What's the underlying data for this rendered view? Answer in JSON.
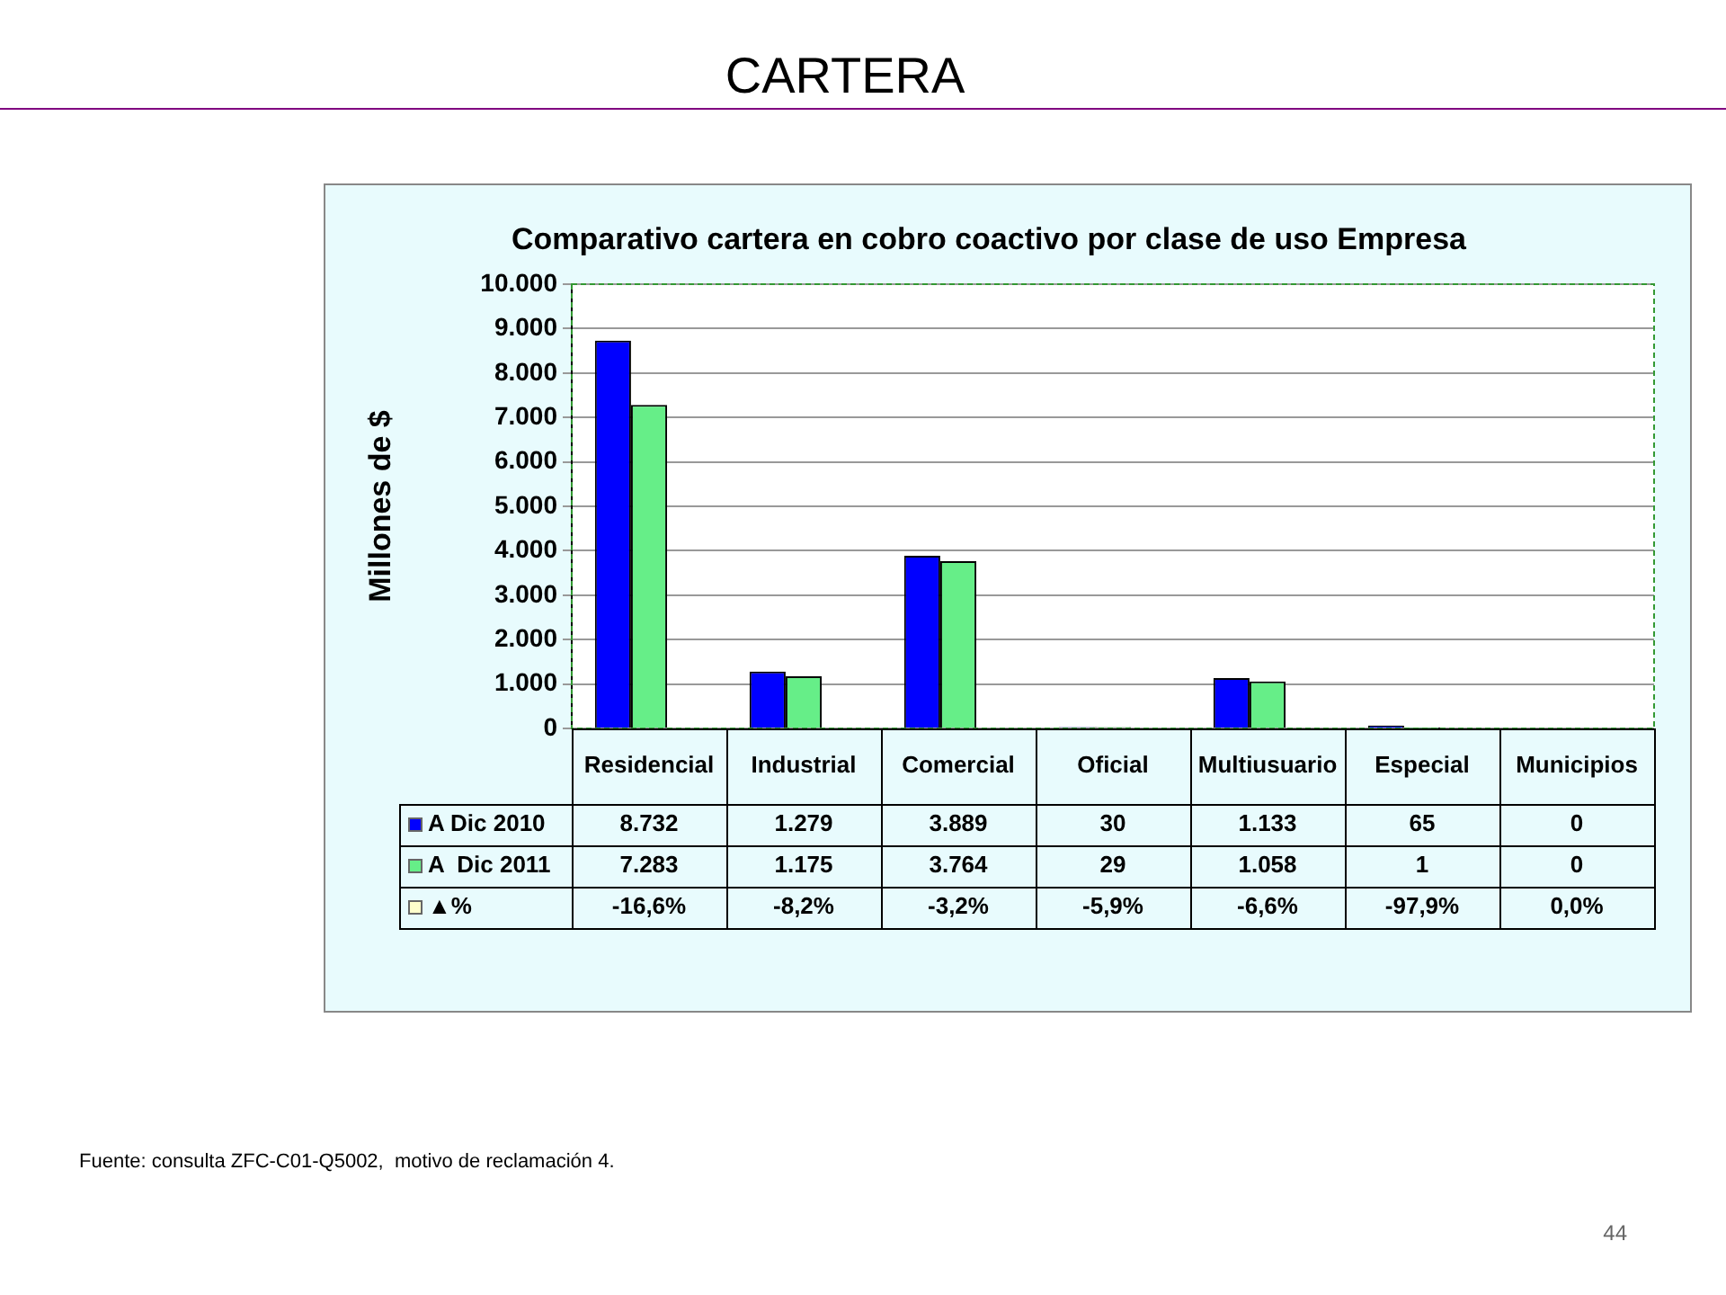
{
  "chart_data": {
    "type": "bar",
    "title": "CARTERA",
    "subtitle": "Comparativo cartera en cobro coactivo por clase de uso Empresa",
    "ylabel": "Millones de $",
    "categories": [
      "Residencial",
      "Industrial",
      "Comercial",
      "Oficial",
      "Multiusuario",
      "Especial",
      "Municipios"
    ],
    "series": [
      {
        "name": "A Dic 2010",
        "color": "#0000ff",
        "values": [
          8732,
          1279,
          3889,
          30,
          1133,
          65,
          0
        ],
        "value_labels": [
          "8.732",
          "1.279",
          "3.889",
          "30",
          "1.133",
          "65",
          "0"
        ]
      },
      {
        "name": "A  Dic 2011",
        "color": "#66ee88",
        "values": [
          7283,
          1175,
          3764,
          29,
          1058,
          1,
          0
        ],
        "value_labels": [
          "7.283",
          "1.175",
          "3.764",
          "29",
          "1.058",
          "1",
          "0"
        ]
      },
      {
        "name": "▲%",
        "color": "#ffffcc",
        "values": [
          null,
          null,
          null,
          null,
          null,
          null,
          null
        ],
        "value_labels": [
          "-16,6%",
          "-8,2%",
          "-3,2%",
          "-5,9%",
          "-6,6%",
          "-97,9%",
          "0,0%"
        ]
      }
    ],
    "ylim": [
      0,
      10000
    ],
    "yticks": [
      {
        "value": 0,
        "label": "0"
      },
      {
        "value": 1000,
        "label": "1.000"
      },
      {
        "value": 2000,
        "label": "2.000"
      },
      {
        "value": 3000,
        "label": "3.000"
      },
      {
        "value": 4000,
        "label": "4.000"
      },
      {
        "value": 5000,
        "label": "5.000"
      },
      {
        "value": 6000,
        "label": "6.000"
      },
      {
        "value": 7000,
        "label": "7.000"
      },
      {
        "value": 8000,
        "label": "8.000"
      },
      {
        "value": 9000,
        "label": "9.000"
      },
      {
        "value": 10000,
        "label": "10.000"
      }
    ],
    "grid": "y",
    "legend": "bottom left",
    "annotations": [
      "Fuente: consulta ZFC-C01-Q5002,  motivo de reclamación 4.",
      "44"
    ]
  }
}
